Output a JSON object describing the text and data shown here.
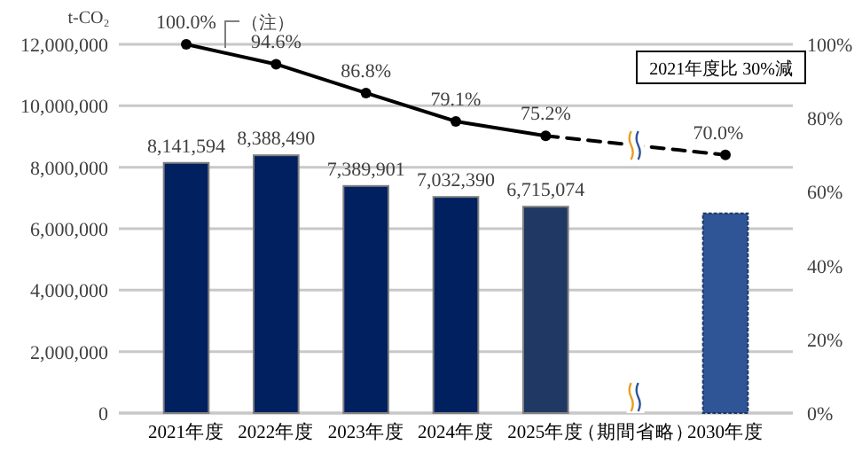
{
  "chart_data": {
    "type": "bar",
    "ylabel": "t-CO₂",
    "categories": [
      "2021年度",
      "2022年度",
      "2023年度",
      "2024年度",
      "2025年度",
      "（期間省略）",
      "2030年度"
    ],
    "series": [
      {
        "colors": [
          "#002060",
          "#002060",
          "#002060",
          "#002060",
          "#203864",
          null,
          "#2f5597"
        ],
        "values": [
          8141594,
          8388490,
          7389901,
          7032390,
          6715074,
          null,
          6500000
        ],
        "value_labels": [
          "8,141,594",
          "8,388,490",
          "7,389,901",
          "7,032,390",
          "6,715,074",
          null,
          null
        ]
      },
      {
        "type": "line",
        "axis": "y2",
        "color": "#000000",
        "line_style": "solid",
        "marker": "circle",
        "values": [
          100.0,
          94.6,
          86.8,
          79.1,
          75.2,
          null,
          null
        ],
        "value_labels": [
          "100.0%",
          "94.6%",
          "86.8%",
          "79.1%",
          "75.2%",
          null,
          null
        ]
      },
      {
        "type": "line",
        "axis": "y2",
        "color": "#000000",
        "line_style": "dashed",
        "marker": "circle",
        "values": [
          null,
          null,
          null,
          null,
          75.2,
          null,
          70.0
        ],
        "value_labels": [
          null,
          null,
          null,
          null,
          null,
          null,
          "70.0%"
        ]
      }
    ],
    "ylim": [
      0,
      12000000
    ],
    "yticks": [
      {
        "value": 0,
        "label": "0"
      },
      {
        "value": 2000000,
        "label": "2,000,000"
      },
      {
        "value": 4000000,
        "label": "4,000,000"
      },
      {
        "value": 6000000,
        "label": "6,000,000"
      },
      {
        "value": 8000000,
        "label": "8,000,000"
      },
      {
        "value": 10000000,
        "label": "10,000,000"
      },
      {
        "value": 12000000,
        "label": "12,000,000"
      }
    ],
    "y2lim": [
      0,
      100
    ],
    "y2ticks": [
      {
        "value": 0,
        "label": "0%"
      },
      {
        "value": 20,
        "label": "20%"
      },
      {
        "value": 40,
        "label": "40%"
      },
      {
        "value": 60,
        "label": "60%"
      },
      {
        "value": 80,
        "label": "80%"
      },
      {
        "value": 100,
        "label": "100%"
      }
    ],
    "grid": "y",
    "annotations": [
      "（注）",
      "2021年度比 30%減"
    ]
  }
}
